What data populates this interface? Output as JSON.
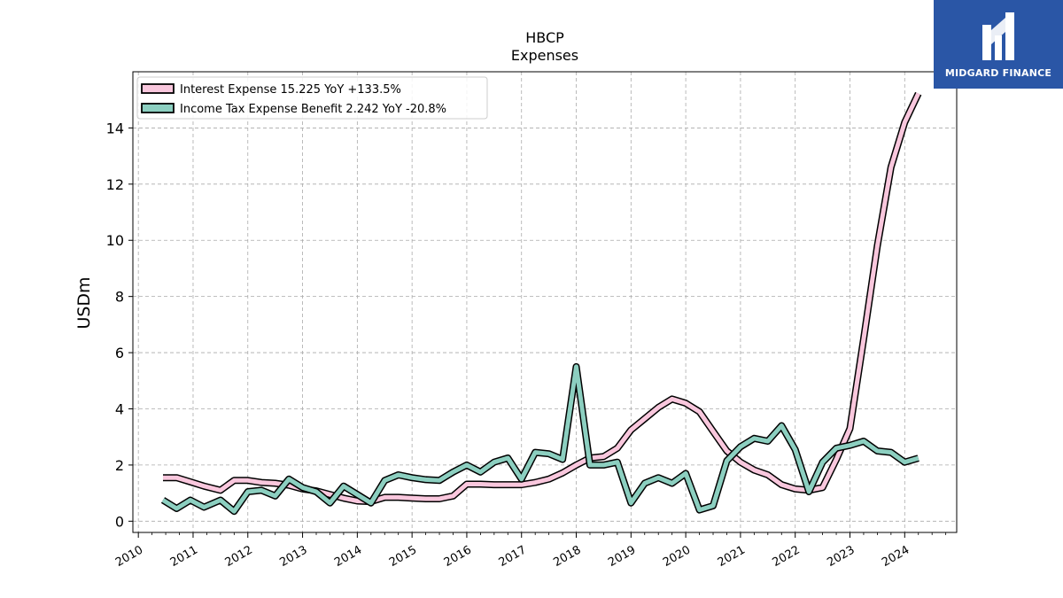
{
  "chart_data": {
    "type": "line",
    "title": "HBCP",
    "subtitle": "Expenses",
    "ylabel": "USDm",
    "xlabel": "",
    "xlim": [
      2009.9,
      2024.95
    ],
    "ylim": [
      -0.4,
      16.0
    ],
    "x_ticks": [
      "2010",
      "2011",
      "2012",
      "2013",
      "2014",
      "2015",
      "2016",
      "2017",
      "2018",
      "2019",
      "2020",
      "2021",
      "2022",
      "2023",
      "2024"
    ],
    "y_ticks": [
      0,
      2,
      4,
      6,
      8,
      10,
      12,
      14
    ],
    "grid": true,
    "legend_position": "top-left",
    "series": [
      {
        "name": "Interest Expense",
        "legend_label": "Interest Expense  15.225 YoY +133.5%",
        "color": "#f9c7dd",
        "points": [
          [
            2010.45,
            1.55
          ],
          [
            2010.7,
            1.55
          ],
          [
            2010.95,
            1.4
          ],
          [
            2011.2,
            1.25
          ],
          [
            2011.5,
            1.1
          ],
          [
            2011.75,
            1.45
          ],
          [
            2012.0,
            1.45
          ],
          [
            2012.25,
            1.38
          ],
          [
            2012.5,
            1.35
          ],
          [
            2012.75,
            1.28
          ],
          [
            2013.0,
            1.15
          ],
          [
            2013.25,
            1.08
          ],
          [
            2013.5,
            0.95
          ],
          [
            2013.75,
            0.82
          ],
          [
            2014.0,
            0.72
          ],
          [
            2014.25,
            0.7
          ],
          [
            2014.5,
            0.85
          ],
          [
            2014.75,
            0.85
          ],
          [
            2015.0,
            0.82
          ],
          [
            2015.25,
            0.8
          ],
          [
            2015.5,
            0.8
          ],
          [
            2015.75,
            0.9
          ],
          [
            2016.0,
            1.32
          ],
          [
            2016.25,
            1.32
          ],
          [
            2016.5,
            1.3
          ],
          [
            2016.75,
            1.3
          ],
          [
            2017.0,
            1.3
          ],
          [
            2017.25,
            1.38
          ],
          [
            2017.5,
            1.5
          ],
          [
            2017.75,
            1.72
          ],
          [
            2018.0,
            2.0
          ],
          [
            2018.25,
            2.25
          ],
          [
            2018.5,
            2.3
          ],
          [
            2018.75,
            2.6
          ],
          [
            2019.0,
            3.25
          ],
          [
            2019.25,
            3.65
          ],
          [
            2019.5,
            4.05
          ],
          [
            2019.75,
            4.35
          ],
          [
            2020.0,
            4.2
          ],
          [
            2020.25,
            3.9
          ],
          [
            2020.5,
            3.2
          ],
          [
            2020.75,
            2.5
          ],
          [
            2021.0,
            2.1
          ],
          [
            2021.25,
            1.82
          ],
          [
            2021.5,
            1.65
          ],
          [
            2021.75,
            1.3
          ],
          [
            2022.0,
            1.15
          ],
          [
            2022.25,
            1.1
          ],
          [
            2022.5,
            1.2
          ],
          [
            2022.75,
            2.2
          ],
          [
            2023.0,
            3.3
          ],
          [
            2023.25,
            6.5
          ],
          [
            2023.5,
            9.8
          ],
          [
            2023.75,
            12.6
          ],
          [
            2024.0,
            14.2
          ],
          [
            2024.25,
            15.225
          ]
        ]
      },
      {
        "name": "Income Tax Expense Benefit",
        "legend_label": "Income Tax Expense Benefit  2.242 YoY -20.8%",
        "color": "#8ccfc0",
        "points": [
          [
            2010.45,
            0.75
          ],
          [
            2010.7,
            0.45
          ],
          [
            2010.95,
            0.75
          ],
          [
            2011.2,
            0.5
          ],
          [
            2011.5,
            0.75
          ],
          [
            2011.75,
            0.35
          ],
          [
            2012.0,
            1.05
          ],
          [
            2012.25,
            1.1
          ],
          [
            2012.5,
            0.9
          ],
          [
            2012.75,
            1.5
          ],
          [
            2013.0,
            1.2
          ],
          [
            2013.25,
            1.05
          ],
          [
            2013.5,
            0.65
          ],
          [
            2013.75,
            1.25
          ],
          [
            2014.0,
            0.95
          ],
          [
            2014.25,
            0.65
          ],
          [
            2014.5,
            1.45
          ],
          [
            2014.75,
            1.65
          ],
          [
            2015.0,
            1.55
          ],
          [
            2015.25,
            1.48
          ],
          [
            2015.5,
            1.45
          ],
          [
            2015.75,
            1.75
          ],
          [
            2016.0,
            2.0
          ],
          [
            2016.25,
            1.75
          ],
          [
            2016.5,
            2.1
          ],
          [
            2016.75,
            2.25
          ],
          [
            2017.0,
            1.5
          ],
          [
            2017.25,
            2.45
          ],
          [
            2017.5,
            2.4
          ],
          [
            2017.75,
            2.2
          ],
          [
            2018.0,
            5.5
          ],
          [
            2018.25,
            2.0
          ],
          [
            2018.5,
            2.0
          ],
          [
            2018.75,
            2.1
          ],
          [
            2019.0,
            0.65
          ],
          [
            2019.25,
            1.35
          ],
          [
            2019.5,
            1.55
          ],
          [
            2019.75,
            1.35
          ],
          [
            2020.0,
            1.7
          ],
          [
            2020.25,
            0.4
          ],
          [
            2020.5,
            0.55
          ],
          [
            2020.75,
            2.15
          ],
          [
            2021.0,
            2.65
          ],
          [
            2021.25,
            2.95
          ],
          [
            2021.5,
            2.85
          ],
          [
            2021.75,
            3.4
          ],
          [
            2022.0,
            2.55
          ],
          [
            2022.25,
            1.05
          ],
          [
            2022.5,
            2.1
          ],
          [
            2022.75,
            2.6
          ],
          [
            2023.0,
            2.7
          ],
          [
            2023.25,
            2.85
          ],
          [
            2023.5,
            2.5
          ],
          [
            2023.75,
            2.45
          ],
          [
            2024.0,
            2.1
          ],
          [
            2024.25,
            2.242
          ]
        ]
      }
    ]
  },
  "brand": {
    "name": "MIDGARD FINANCE",
    "logo_color": "#2a56a6"
  }
}
